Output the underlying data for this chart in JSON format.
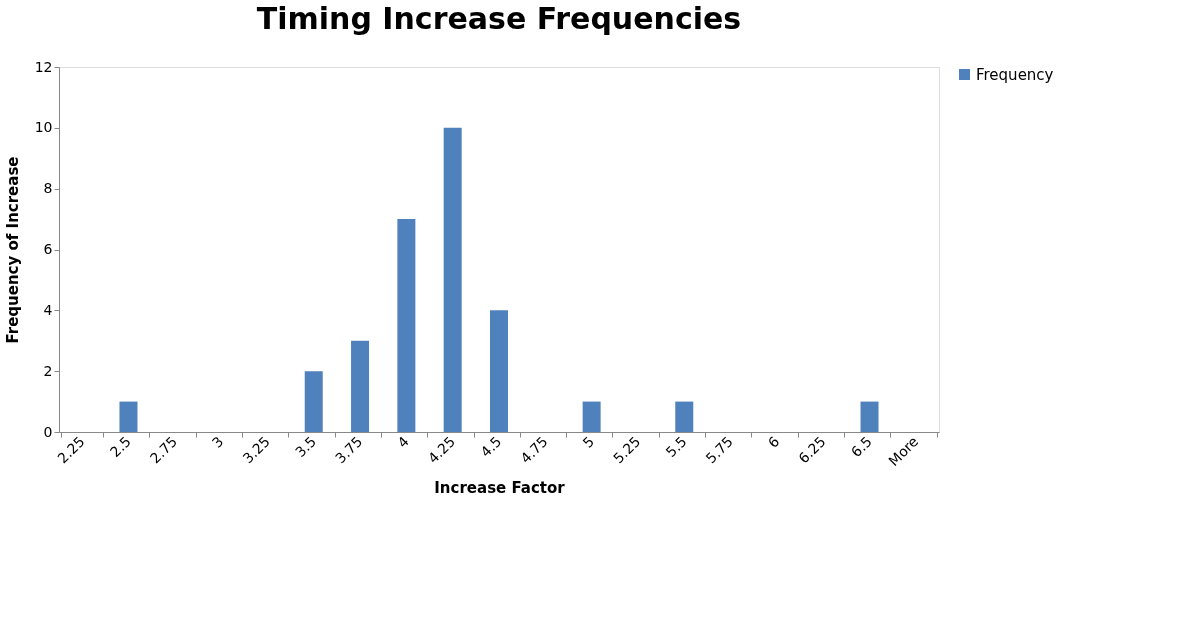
{
  "chart_data": {
    "type": "bar",
    "title": "Timing Increase Frequencies",
    "xlabel": "Increase Factor",
    "ylabel": "Frequency of Increase",
    "categories": [
      "2.25",
      "2.5",
      "2.75",
      "3",
      "3.25",
      "3.5",
      "3.75",
      "4",
      "4.25",
      "4.5",
      "4.75",
      "5",
      "5.25",
      "5.5",
      "5.75",
      "6",
      "6.25",
      "6.5",
      "More"
    ],
    "series": [
      {
        "name": "Frequency",
        "color": "#4f81bd",
        "values": [
          0,
          1,
          0,
          0,
          0,
          2,
          3,
          7,
          10,
          4,
          0,
          1,
          0,
          1,
          0,
          0,
          0,
          1,
          0
        ]
      }
    ],
    "ylim": [
      0,
      12
    ],
    "yticks": [
      0,
      2,
      4,
      6,
      8,
      10,
      12
    ],
    "grid": false,
    "legend": "right"
  }
}
